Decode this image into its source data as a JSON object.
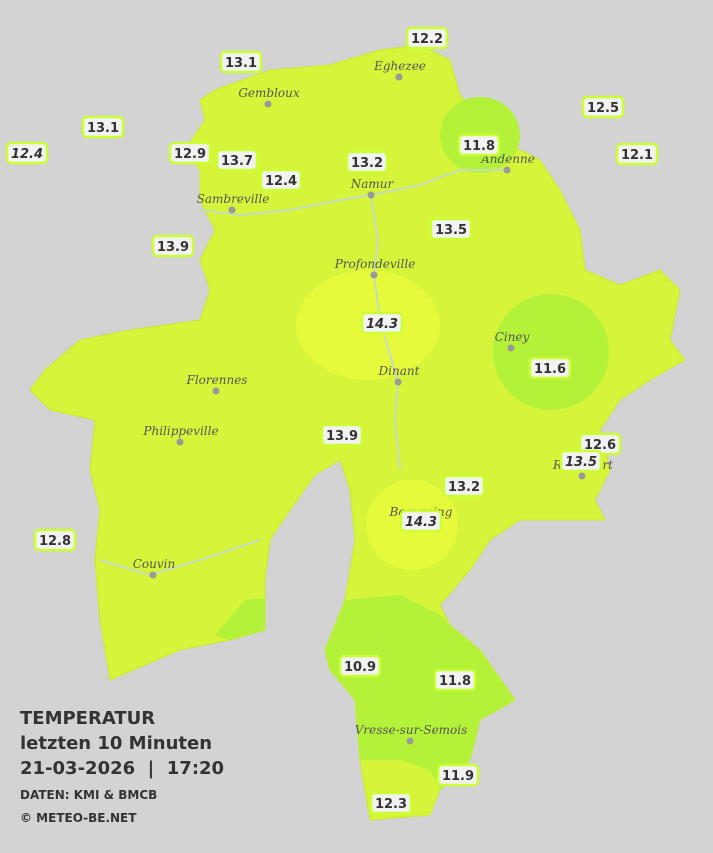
{
  "title": "TEMPERATUR",
  "subtitle": "letzten 10 Minuten",
  "timestamp": "21-03-2026  |  17:20",
  "source": "DATEN: KMI & BMCB",
  "copyright": "© METEO-BE.NET",
  "towns": [
    "Eghezee",
    "Gembloux",
    "Andenne",
    "Namur",
    "Sambreville",
    "Profondeville",
    "Ciney",
    "Dinant",
    "Florennes",
    "Philippeville",
    "Rochefort",
    "Beauraing",
    "Couvin",
    "Vresse-sur-Semois"
  ],
  "stations": [
    "12.2",
    "13.1",
    "12.5",
    "13.1",
    "11.8",
    "12.4",
    "12.9",
    "13.7",
    "12.1",
    "13.2",
    "12.4",
    "13.9",
    "13.5",
    "14.3",
    "11.6",
    "13.9",
    "12.6",
    "13.5",
    "13.2",
    "14.3",
    "12.8",
    "10.9",
    "11.8",
    "11.9",
    "12.3"
  ]
}
